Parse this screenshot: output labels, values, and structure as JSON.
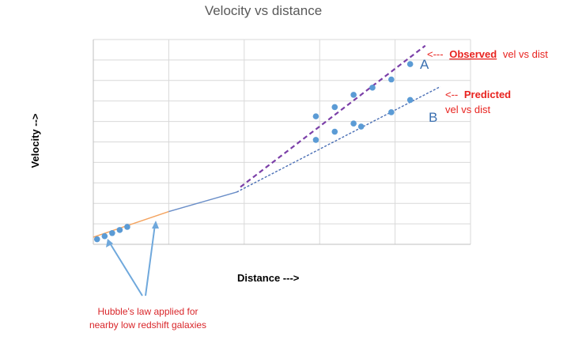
{
  "chart_data": {
    "type": "scatter",
    "title": "Velocity vs distance",
    "xlabel": "Distance --->",
    "ylabel": "Velocity -->",
    "xlim": [
      0,
      10
    ],
    "ylim": [
      0,
      10
    ],
    "grid": true,
    "series": [
      {
        "name": "",
        "color": "#5b9bd5",
        "values": [
          {
            "x": 0.1,
            "y": 0.25
          },
          {
            "x": 0.3,
            "y": 0.4
          },
          {
            "x": 0.5,
            "y": 0.55
          },
          {
            "x": 0.7,
            "y": 0.7
          },
          {
            "x": 0.9,
            "y": 0.85
          },
          {
            "x": 5.9,
            "y": 6.25
          },
          {
            "x": 6.4,
            "y": 6.7
          },
          {
            "x": 6.9,
            "y": 7.3
          },
          {
            "x": 7.4,
            "y": 7.65
          },
          {
            "x": 7.9,
            "y": 8.05
          },
          {
            "x": 8.4,
            "y": 8.8
          },
          {
            "x": 5.9,
            "y": 5.1
          },
          {
            "x": 6.4,
            "y": 5.5
          },
          {
            "x": 6.9,
            "y": 5.9
          },
          {
            "x": 7.1,
            "y": 5.75
          },
          {
            "x": 7.9,
            "y": 6.45
          },
          {
            "x": 8.4,
            "y": 7.05
          }
        ]
      }
    ],
    "lines": [
      {
        "kind": "solid-orange",
        "color": "#f4a460",
        "from": {
          "x": 0.0,
          "y": 0.35
        },
        "to": {
          "x": 2.0,
          "y": 1.6
        }
      },
      {
        "kind": "solid-blue",
        "color": "#6a8ec8",
        "from": {
          "x": 2.0,
          "y": 1.6
        },
        "to": {
          "x": 3.8,
          "y": 2.55
        }
      },
      {
        "kind": "dashed-purple",
        "color": "#7b3fa8",
        "from": {
          "x": 3.9,
          "y": 2.8
        },
        "to": {
          "x": 8.8,
          "y": 9.7
        }
      },
      {
        "kind": "dashed-blue",
        "color": "#4a6fb5",
        "from": {
          "x": 3.8,
          "y": 2.55
        },
        "to": {
          "x": 9.2,
          "y": 7.7
        }
      }
    ]
  },
  "annotations": {
    "observed_prefix": "<---",
    "observed_word": "Observed",
    "observed_suffix": "vel vs dist",
    "label_a": "A",
    "predicted_prefix": "<--",
    "predicted_word": "Predicted",
    "predicted_line2": "vel vs dist",
    "label_b": "B",
    "hubble_line1": "Hubble's law applied for",
    "hubble_line2": "nearby low redshift galaxies"
  },
  "colors": {
    "grid": "#d9d9d9",
    "axis": "#bfbfbf",
    "point": "#5b9bd5",
    "arrow": "#6fa8dc",
    "red_text": "#e8231f",
    "blue_label": "#3a6fb0"
  }
}
